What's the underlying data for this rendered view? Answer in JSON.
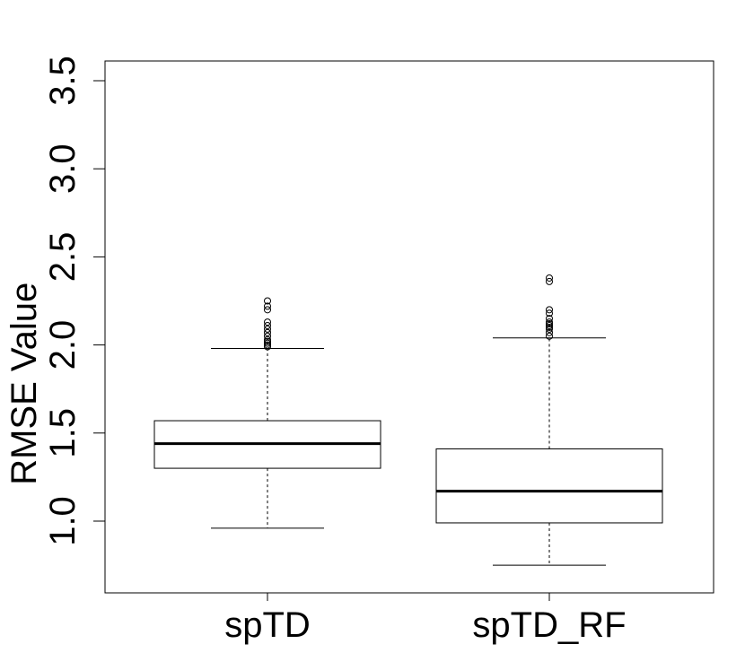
{
  "chart_data": {
    "type": "boxplot",
    "title": "",
    "xlabel": "",
    "ylabel": "RMSE  Value",
    "ylim": [
      0.6,
      3.6
    ],
    "yticks": [
      "1.0",
      "1.5",
      "2.0",
      "2.5",
      "3.0",
      "3.5"
    ],
    "grid": false,
    "legend": "none",
    "categories": [
      "spTD",
      "spTD_RF"
    ],
    "series": [
      {
        "whisker_low": 0.96,
        "q1": 1.3,
        "median": 1.44,
        "q3": 1.57,
        "whisker_high": 1.98,
        "outliers": [
          1.99,
          2.0,
          2.01,
          2.02,
          2.03,
          2.05,
          2.07,
          2.09,
          2.11,
          2.13,
          2.2,
          2.22,
          2.25
        ]
      },
      {
        "whisker_low": 0.75,
        "q1": 0.99,
        "median": 1.17,
        "q3": 1.41,
        "whisker_high": 2.04,
        "outliers": [
          2.05,
          2.07,
          2.09,
          2.1,
          2.11,
          2.12,
          2.13,
          2.15,
          2.18,
          2.2,
          2.36,
          2.38
        ]
      }
    ]
  }
}
